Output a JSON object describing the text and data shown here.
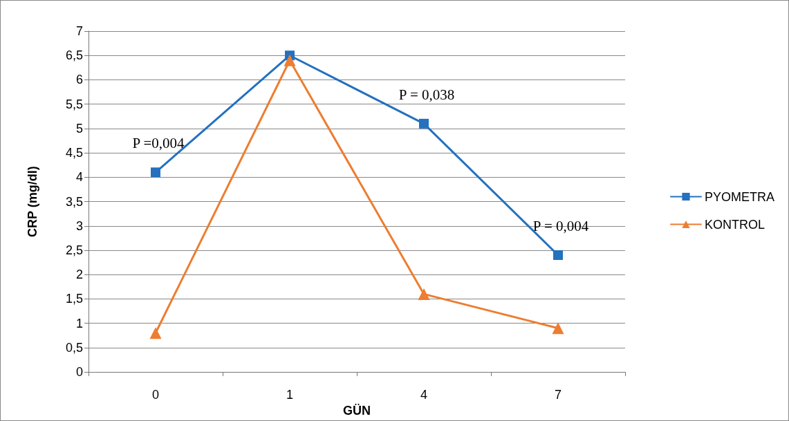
{
  "chart_data": {
    "type": "line",
    "xlabel": "GÜN",
    "ylabel": "CRP (mg/dl)",
    "categories": [
      "0",
      "1",
      "4",
      "7"
    ],
    "series": [
      {
        "name": "PYOMETRA",
        "color": "#2371bf",
        "marker": "square",
        "values": [
          4.1,
          6.5,
          5.1,
          2.4
        ]
      },
      {
        "name": "KONTROL",
        "color": "#ed7d31",
        "marker": "triangle",
        "values": [
          0.8,
          6.4,
          1.6,
          0.9
        ]
      }
    ],
    "ylim": [
      0,
      7
    ],
    "yticks": [
      0,
      {
        "value": 0.5,
        "label": "0,5"
      },
      1,
      {
        "value": 1.5,
        "label": "1,5"
      },
      2,
      {
        "value": 2.5,
        "label": "2,5"
      },
      3,
      {
        "value": 3.5,
        "label": "3,5"
      },
      4,
      {
        "value": 4.5,
        "label": "4,5"
      },
      5,
      {
        "value": 5.5,
        "label": "5,5"
      },
      6,
      {
        "value": 6.5,
        "label": "6,5"
      },
      7
    ],
    "annotations": [
      {
        "text": "P =0,004",
        "x": "0",
        "y": 4.1
      },
      {
        "text": "P = 0,038",
        "x": "4",
        "y": 5.1
      },
      {
        "text": "P = 0,004",
        "x": "7",
        "y": 2.4
      }
    ],
    "grid": "y",
    "legend": "right",
    "line_style": "solid"
  }
}
